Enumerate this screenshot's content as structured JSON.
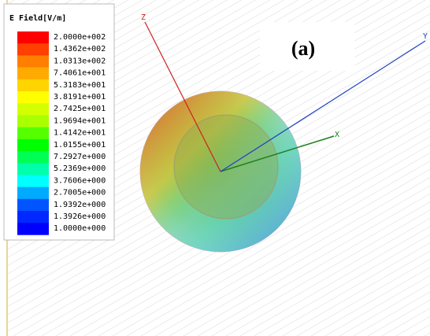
{
  "legend": {
    "title": "E Field[V/m]",
    "entries": [
      {
        "label": "2.0000e+002",
        "color": "#ff0000"
      },
      {
        "label": "1.4362e+002",
        "color": "#ff4000"
      },
      {
        "label": "1.0313e+002",
        "color": "#ff7f00"
      },
      {
        "label": "7.4061e+001",
        "color": "#ffaa00"
      },
      {
        "label": "5.3183e+001",
        "color": "#ffd400"
      },
      {
        "label": "3.8191e+001",
        "color": "#ffff00"
      },
      {
        "label": "2.7425e+001",
        "color": "#d4ff00"
      },
      {
        "label": "1.9694e+001",
        "color": "#aaff00"
      },
      {
        "label": "1.4142e+001",
        "color": "#55ff00"
      },
      {
        "label": "1.0155e+001",
        "color": "#00ff00"
      },
      {
        "label": "7.2927e+000",
        "color": "#00ff55"
      },
      {
        "label": "5.2369e+000",
        "color": "#00ffaa"
      },
      {
        "label": "3.7606e+000",
        "color": "#00ffff"
      },
      {
        "label": "2.7005e+000",
        "color": "#00aaff"
      },
      {
        "label": "1.9392e+000",
        "color": "#0055ff"
      },
      {
        "label": "1.3926e+000",
        "color": "#0028ff"
      },
      {
        "label": "1.0000e+000",
        "color": "#0000ff"
      }
    ]
  },
  "panel_label": "(a)",
  "axes": {
    "z": "Z",
    "x": "X",
    "y": "Y"
  }
}
